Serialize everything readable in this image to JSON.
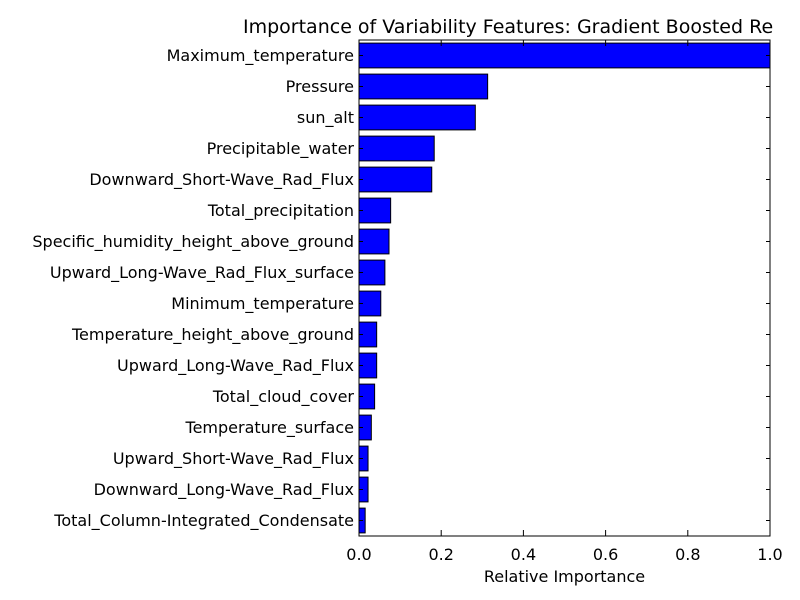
{
  "chart_data": {
    "type": "bar",
    "orientation": "horizontal",
    "title": "Importance of Variability Features: Gradient Boosted Re",
    "xlabel": "Relative Importance",
    "ylabel": "",
    "xlim": [
      0.0,
      1.0
    ],
    "xticks": [
      "0.0",
      "0.2",
      "0.4",
      "0.6",
      "0.8",
      "1.0"
    ],
    "grid": false,
    "legend": "none",
    "bar_color": "#0000ff",
    "categories": [
      "Maximum_temperature",
      "Pressure",
      "sun_alt",
      "Precipitable_water",
      "Downward_Short-Wave_Rad_Flux",
      "Total_precipitation",
      "Specific_humidity_height_above_ground",
      "Upward_Long-Wave_Rad_Flux_surface",
      "Minimum_temperature",
      "Temperature_height_above_ground",
      "Upward_Long-Wave_Rad_Flux",
      "Total_cloud_cover",
      "Temperature_surface",
      "Upward_Short-Wave_Rad_Flux",
      "Downward_Long-Wave_Rad_Flux",
      "Total_Column-Integrated_Condensate"
    ],
    "values": [
      1.0,
      0.313,
      0.283,
      0.183,
      0.177,
      0.077,
      0.073,
      0.063,
      0.053,
      0.043,
      0.043,
      0.038,
      0.03,
      0.022,
      0.022,
      0.015
    ]
  }
}
